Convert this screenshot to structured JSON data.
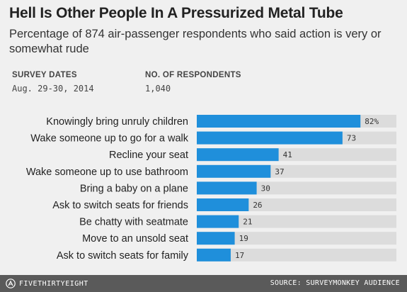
{
  "title": "Hell Is Other People In A Pressurized Metal Tube",
  "subtitle": "Percentage of 874 air-passenger respondents who said action is very or somewhat rude",
  "meta": {
    "dates_label": "SURVEY DATES",
    "dates_value": "Aug. 29-30, 2014",
    "respondents_label": "NO. OF RESPONDENTS",
    "respondents_value": "1,040"
  },
  "footer": {
    "logo_text": "FIVETHIRTYEIGHT",
    "logo_icon": "fivethirtyeight-logo-icon",
    "source": "SOURCE: SURVEYMONKEY AUDIENCE"
  },
  "colors": {
    "bar": "#1f8fdb",
    "track": "#dcdcdc",
    "footer_bg": "#5a5a5a",
    "background": "#f0f0f0"
  },
  "chart_data": {
    "type": "bar",
    "orientation": "horizontal",
    "xlim": [
      0,
      100
    ],
    "grid": false,
    "categories": [
      "Knowingly bring unruly children",
      "Wake someone up to go for a walk",
      "Recline your seat",
      "Wake someone up to use bathroom",
      "Bring a baby on a plane",
      "Ask to switch seats for friends",
      "Be chatty with seatmate",
      "Move to an unsold seat",
      "Ask to switch seats for family"
    ],
    "values": [
      82,
      73,
      41,
      37,
      30,
      26,
      21,
      19,
      17
    ],
    "value_labels": [
      "82%",
      "73",
      "41",
      "37",
      "30",
      "26",
      "21",
      "19",
      "17"
    ]
  }
}
